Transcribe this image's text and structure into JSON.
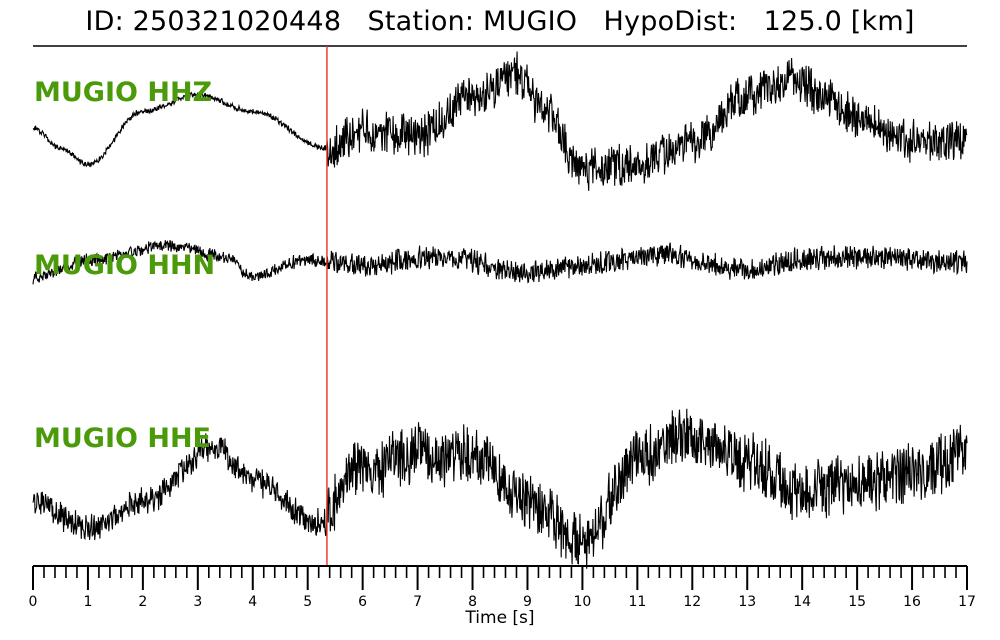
{
  "header": {
    "title": "ID: 250321020448   Station: MUGIO   HypoDist:   125.0 [km]"
  },
  "chart_data": {
    "type": "line",
    "title": "ID: 250321020448   Station: MUGIO   HypoDist:   125.0 [km]",
    "xlabel": "Time [s]",
    "ylabel": "",
    "xlim": [
      0,
      17
    ],
    "x_tick_labels": [
      "0",
      "1",
      "2",
      "3",
      "4",
      "5",
      "6",
      "7",
      "8",
      "9",
      "10",
      "11",
      "12",
      "13",
      "14",
      "15",
      "16",
      "17"
    ],
    "minor_tick_step": 0.2,
    "grid": false,
    "legend": "none",
    "pick_marker": {
      "x": 5.35,
      "color": "#e8322b"
    },
    "label_color": "#4a9a0a",
    "trace_color": "#000000",
    "series": [
      {
        "name": "MUGIO HHZ",
        "description_points": [
          [
            0,
            0.15
          ],
          [
            0.5,
            -0.1
          ],
          [
            1,
            -0.3
          ],
          [
            2,
            0.35
          ],
          [
            3,
            0.55
          ],
          [
            4,
            0.35
          ],
          [
            5.35,
            -0.1
          ],
          [
            6,
            0.1
          ],
          [
            7,
            0.05
          ],
          [
            8,
            0.5
          ],
          [
            8.8,
            0.8
          ],
          [
            9.2,
            0.45
          ],
          [
            10,
            -0.35
          ],
          [
            11,
            -0.3
          ],
          [
            12,
            -0.05
          ],
          [
            13,
            0.55
          ],
          [
            13.8,
            0.75
          ],
          [
            14.5,
            0.5
          ],
          [
            15,
            0.25
          ],
          [
            16,
            0.0
          ],
          [
            17,
            0.0
          ]
        ],
        "noise_before_pick": 0.03,
        "noise_after_pick": 0.22
      },
      {
        "name": "MUGIO HHN",
        "description_points": [
          [
            0,
            -0.25
          ],
          [
            1,
            0.1
          ],
          [
            2.5,
            0.35
          ],
          [
            3.5,
            0.15
          ],
          [
            4,
            -0.2
          ],
          [
            5,
            0.1
          ],
          [
            6,
            0.0
          ],
          [
            7.5,
            0.15
          ],
          [
            9,
            -0.15
          ],
          [
            10.5,
            0.05
          ],
          [
            11.5,
            0.2
          ],
          [
            13,
            -0.1
          ],
          [
            14,
            0.1
          ],
          [
            15,
            0.15
          ],
          [
            17,
            0.05
          ]
        ],
        "noise_before_pick": 0.1,
        "noise_after_pick": 0.18
      },
      {
        "name": "MUGIO HHE",
        "description_points": [
          [
            0,
            -0.2
          ],
          [
            1,
            -0.5
          ],
          [
            2,
            -0.2
          ],
          [
            3.3,
            0.45
          ],
          [
            4,
            0.05
          ],
          [
            5.2,
            -0.45
          ],
          [
            6,
            0.2
          ],
          [
            7,
            0.35
          ],
          [
            8,
            0.35
          ],
          [
            9,
            -0.2
          ],
          [
            10,
            -0.65
          ],
          [
            11,
            0.3
          ],
          [
            12,
            0.6
          ],
          [
            13,
            0.25
          ],
          [
            14,
            -0.1
          ],
          [
            15,
            0.0
          ],
          [
            16,
            0.15
          ],
          [
            17,
            0.35
          ]
        ],
        "noise_before_pick": 0.14,
        "noise_after_pick": 0.3
      }
    ]
  }
}
